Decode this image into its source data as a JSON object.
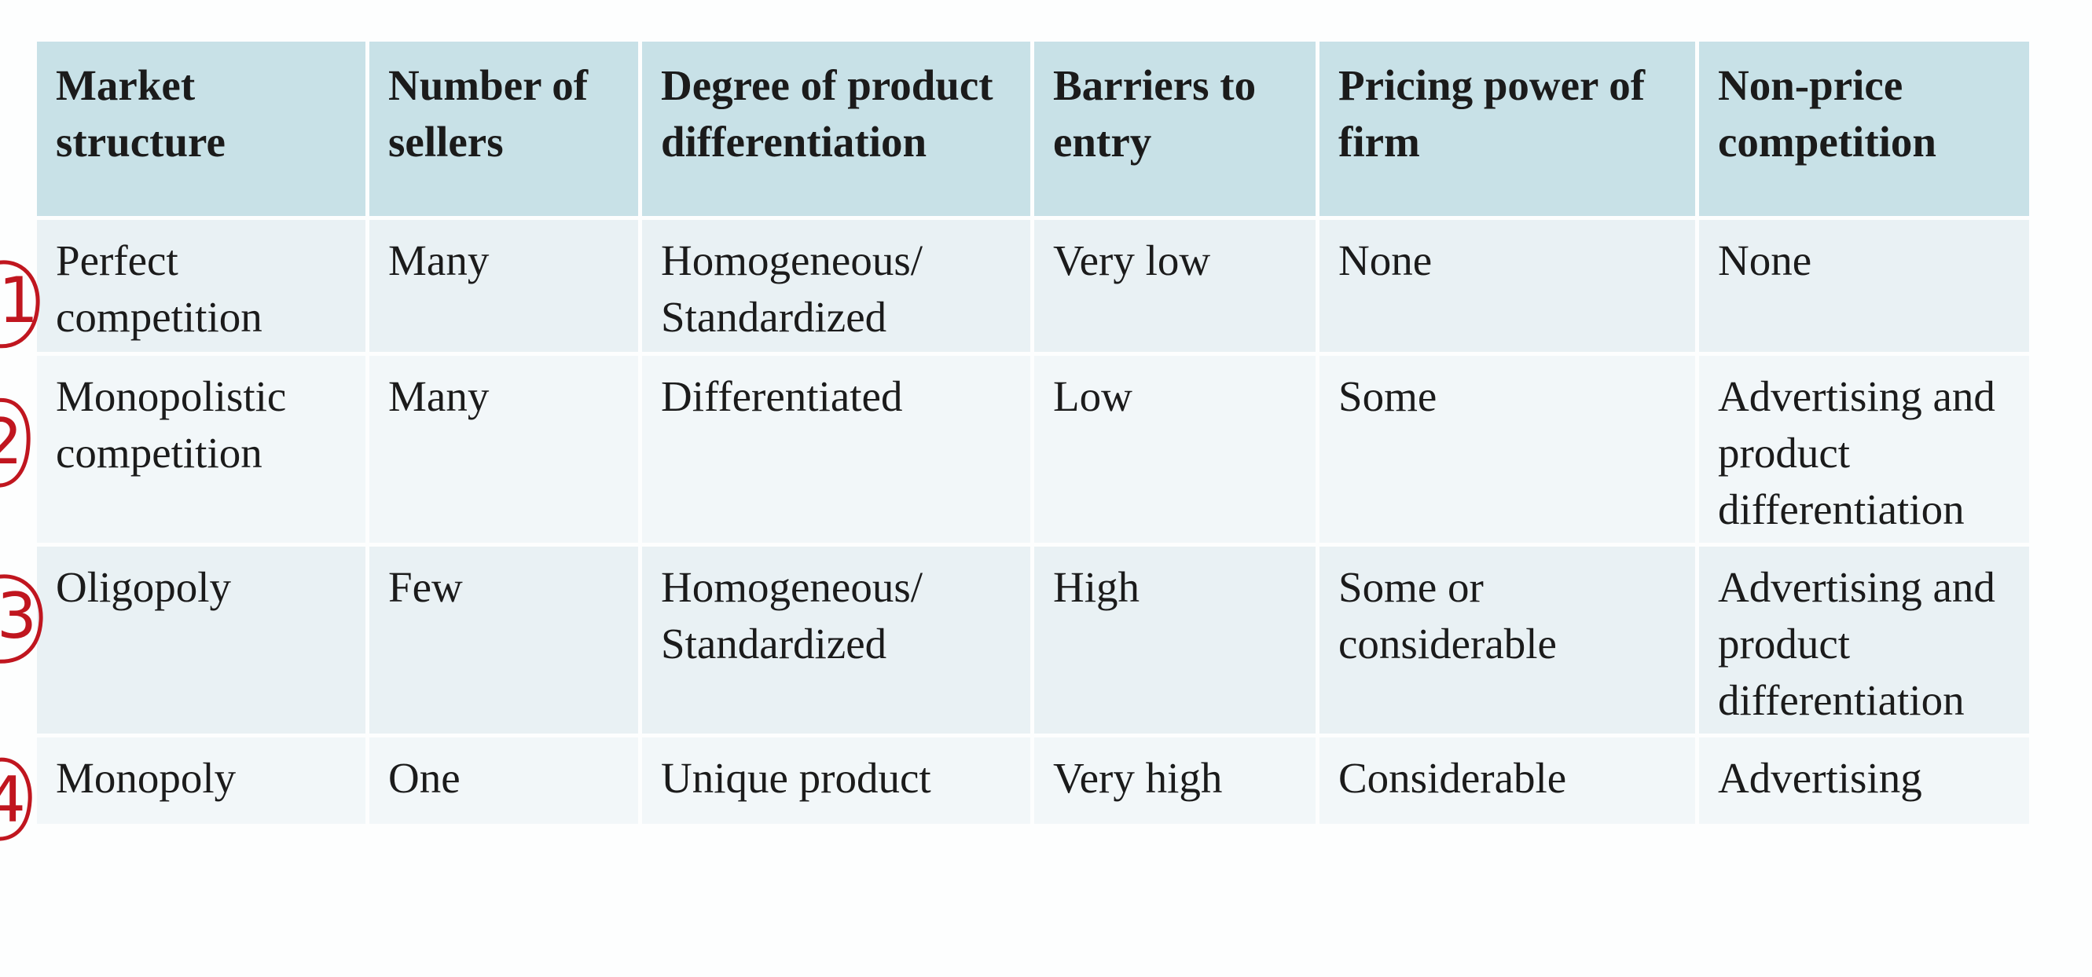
{
  "table": {
    "headers": [
      "Market structure",
      "Number of sellers",
      "Degree of product differentiation",
      "Barriers to entry",
      "Pricing power of firm",
      "Non-price competition"
    ],
    "rows": [
      [
        "Perfect competition",
        "Many",
        "Homogeneous/ Standardized",
        "Very low",
        "None",
        "None"
      ],
      [
        "Monopolistic competition",
        "Many",
        "Differentiated",
        "Low",
        "Some",
        "Advertising and product differentiation"
      ],
      [
        "Oligopoly",
        "Few",
        "Homogeneous/ Standardized",
        "High",
        "Some or considerable",
        "Advertising and product differentiation"
      ],
      [
        "Monopoly",
        "One",
        "Unique product",
        "Very high",
        "Considerable",
        "Advertising"
      ]
    ]
  },
  "annotations": {
    "ink_color": "#c0161f",
    "row_numbers": [
      "1",
      "2",
      "3",
      "4"
    ]
  }
}
